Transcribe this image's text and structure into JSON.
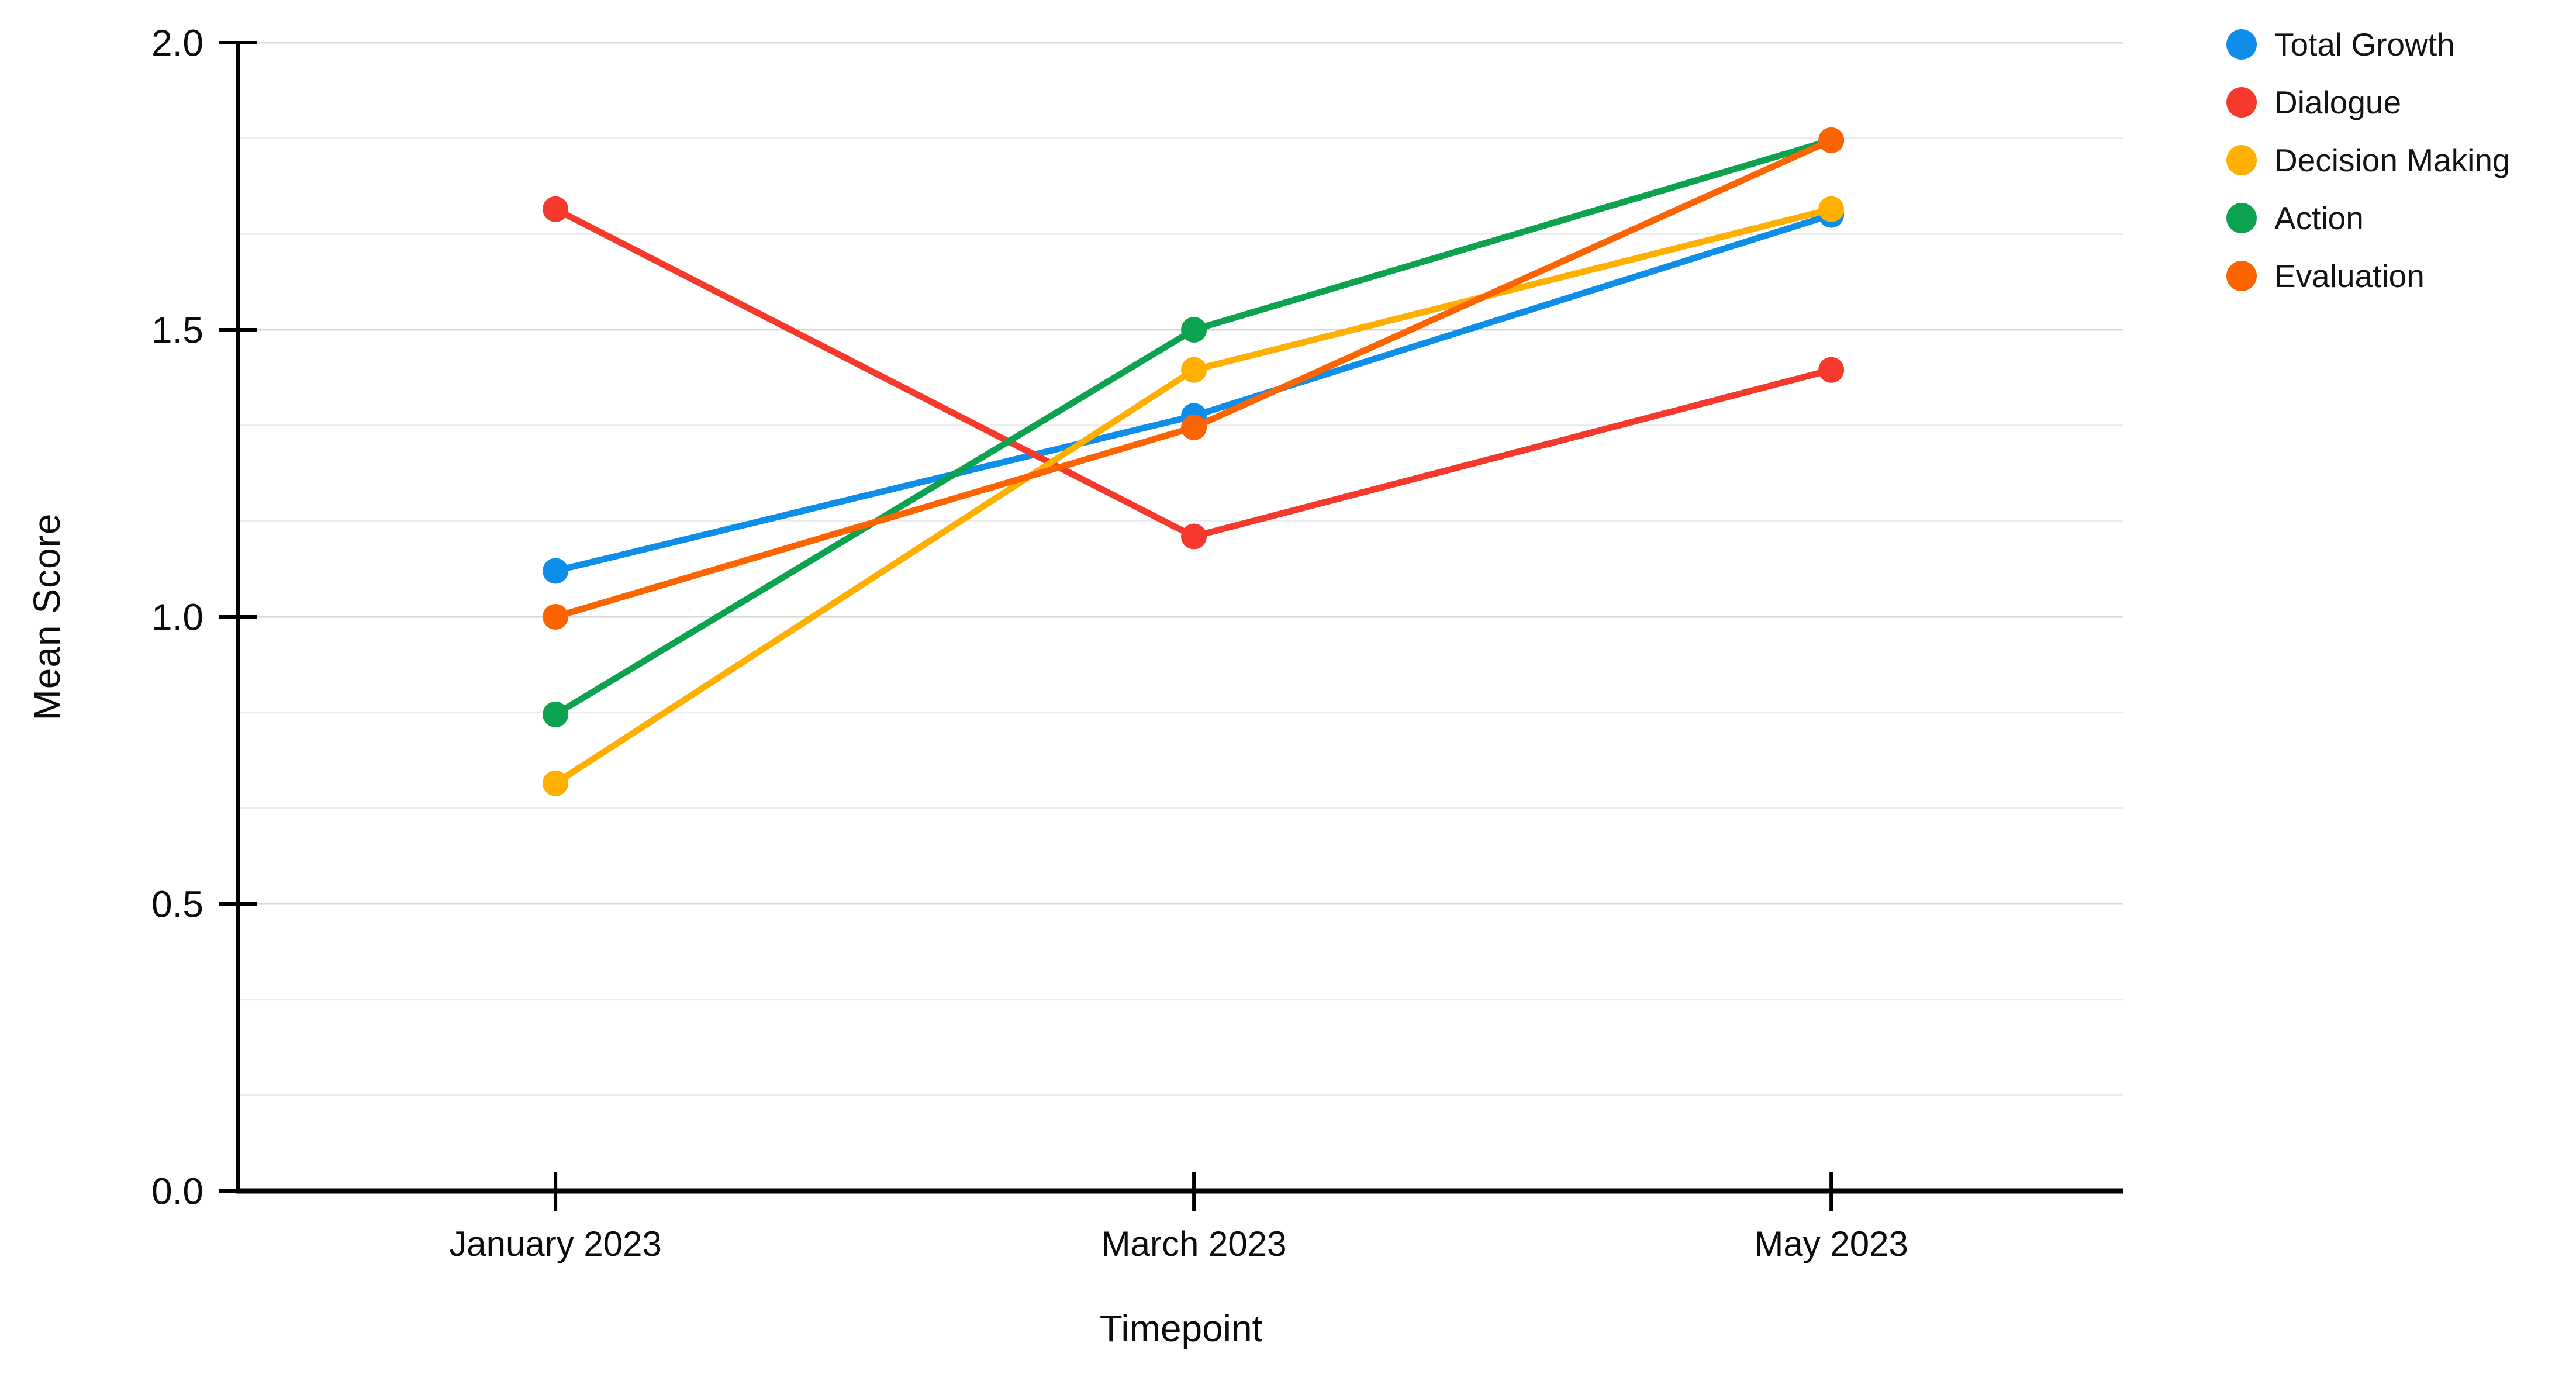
{
  "chart_data": {
    "type": "line",
    "title": "",
    "xlabel": "Timepoint",
    "ylabel": "Mean Score",
    "categories": [
      "January 2023",
      "March 2023",
      "May 2023"
    ],
    "series": [
      {
        "name": "Total Growth",
        "color": "#0E8DE9",
        "values": [
          1.08,
          1.35,
          1.7
        ]
      },
      {
        "name": "Dialogue",
        "color": "#F5392C",
        "values": [
          1.71,
          1.14,
          1.43
        ]
      },
      {
        "name": "Decision Making",
        "color": "#FFAF00",
        "values": [
          0.71,
          1.43,
          1.71
        ]
      },
      {
        "name": "Action",
        "color": "#0DA24F",
        "values": [
          0.83,
          1.5,
          1.83
        ]
      },
      {
        "name": "Evaluation",
        "color": "#FB6400",
        "values": [
          1.0,
          1.33,
          1.83
        ]
      }
    ],
    "ylim": [
      0,
      2
    ],
    "yticks": [
      0.0,
      0.5,
      1.0,
      1.5,
      2.0
    ],
    "ytick_labels": [
      "0.0",
      "0.5",
      "1.0",
      "1.5",
      "2.0"
    ],
    "minor_gridline_step": 0.16667,
    "grid": true,
    "legend_position": "top-right",
    "marker": "circle"
  }
}
